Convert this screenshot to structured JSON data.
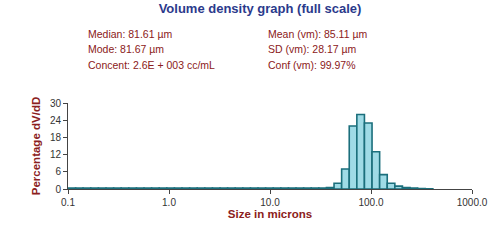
{
  "chart_data": {
    "type": "histogram",
    "title": "Volume density graph (full scale)",
    "x_label": "Size in microns",
    "y_label": "Percentage dV/dD",
    "annotations": [
      "Median: 81.61 µm",
      "Mode: 81.67 µm",
      "Concent: 2.6E + 003 cc/mL",
      "Mean (vm): 85.11 µm",
      "SD (vm): 28.17 µm",
      "Conf (vm): 99.97%"
    ],
    "bins": [
      0.1,
      0.119,
      0.141,
      0.168,
      0.2,
      0.238,
      0.283,
      0.336,
      0.4,
      0.476,
      0.566,
      0.673,
      0.8,
      0.951,
      1.131,
      1.345,
      1.6,
      1.903,
      2.263,
      2.691,
      3.2,
      3.805,
      4.525,
      5.382,
      6.4,
      7.611,
      9.051,
      10.763,
      12.8,
      15.222,
      18.102,
      21.527,
      25.6,
      30.444,
      36.204,
      43.054,
      51.2,
      60.887,
      72.408,
      86.108,
      102.4,
      121.775,
      144.815,
      172.216,
      204.8,
      243.549,
      289.631,
      344.431,
      409.6
    ],
    "values": [
      0.3,
      0.3,
      0.3,
      0.3,
      0.3,
      0.3,
      0.3,
      0.3,
      0.3,
      0.3,
      0.3,
      0.3,
      0.3,
      0.3,
      0.3,
      0.3,
      0.3,
      0.3,
      0.3,
      0.3,
      0.3,
      0.3,
      0.3,
      0.3,
      0.3,
      0.3,
      0.3,
      0.3,
      0.3,
      0.3,
      0.3,
      0.3,
      0.3,
      0.3,
      0.5,
      2,
      7,
      22,
      26,
      23,
      13,
      5,
      2,
      1,
      0.5,
      0.3,
      0.2,
      0.1
    ],
    "color": "#9fdbe6",
    "xlim": [
      0.1,
      1000
    ],
    "xticks": [
      0.1,
      {
        "value": 1,
        "label": "1.0"
      },
      {
        "value": 10,
        "label": "10.0"
      },
      {
        "value": 100,
        "label": "100.0"
      },
      {
        "value": 1000,
        "label": "1000.0"
      }
    ],
    "ylim": [
      0,
      30
    ],
    "yticks": [
      0,
      6,
      12,
      18,
      24,
      30
    ],
    "log": "x",
    "grid": false
  }
}
